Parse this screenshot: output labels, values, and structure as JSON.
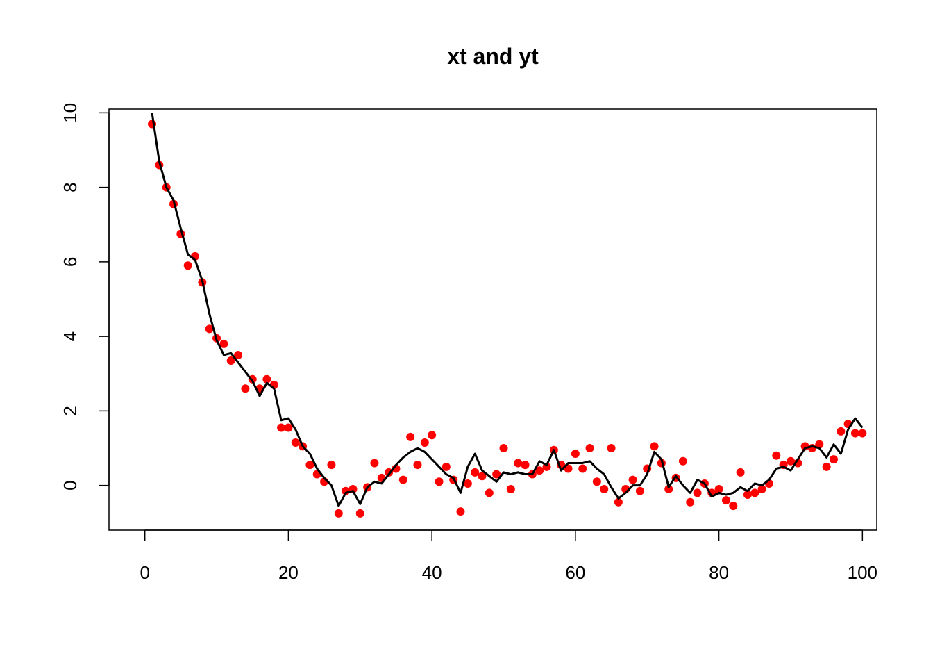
{
  "chart_data": {
    "type": "scatter",
    "title": "xt and yt",
    "xlabel": "",
    "ylabel": "",
    "xlim": [
      -5,
      102
    ],
    "ylim": [
      -1.2,
      10.1
    ],
    "x_ticks": [
      0,
      20,
      40,
      60,
      80,
      100
    ],
    "y_ticks": [
      0,
      2,
      4,
      6,
      8,
      10
    ],
    "grid": false,
    "colors": {
      "points": "#ff0000",
      "line": "#000000"
    },
    "series": [
      {
        "kind": "points",
        "values": [
          9.7,
          8.6,
          8.0,
          7.55,
          6.75,
          5.9,
          6.15,
          5.45,
          4.2,
          3.95,
          3.8,
          3.35,
          3.5,
          2.6,
          2.85,
          2.6,
          2.85,
          2.7,
          1.55,
          1.55,
          1.15,
          1.05,
          0.55,
          0.3,
          0.1,
          0.55,
          -0.75,
          -0.15,
          -0.1,
          -0.75,
          -0.05,
          0.6,
          0.2,
          0.35,
          0.45,
          0.15,
          1.3,
          0.55,
          1.15,
          1.35,
          0.1,
          0.5,
          0.15,
          -0.7,
          0.05,
          0.35,
          0.25,
          -0.2,
          0.3,
          1.0,
          -0.1,
          0.6,
          0.55,
          0.3,
          0.4,
          0.5,
          0.95,
          0.55,
          0.45,
          0.85,
          0.45,
          1.0,
          0.1,
          -0.1,
          1.0,
          -0.45,
          -0.1,
          0.15,
          -0.15,
          0.45,
          1.05,
          0.6,
          -0.1,
          0.2,
          0.65,
          -0.45,
          -0.2,
          0.05,
          -0.2,
          -0.1,
          -0.4,
          -0.55,
          0.35,
          -0.25,
          -0.2,
          -0.1,
          0.05,
          0.8,
          0.55,
          0.65,
          0.6,
          1.05,
          1.0,
          1.1,
          0.5,
          0.7,
          1.45,
          1.65,
          1.4,
          1.4
        ]
      },
      {
        "kind": "line",
        "values": [
          10.0,
          8.7,
          8.0,
          7.65,
          6.9,
          6.2,
          6.05,
          5.5,
          4.6,
          3.9,
          3.5,
          3.55,
          3.3,
          3.05,
          2.8,
          2.4,
          2.75,
          2.6,
          1.75,
          1.8,
          1.5,
          1.05,
          0.85,
          0.45,
          0.2,
          0.0,
          -0.55,
          -0.2,
          -0.15,
          -0.5,
          -0.05,
          0.1,
          0.05,
          0.3,
          0.55,
          0.75,
          0.9,
          1.0,
          0.9,
          0.7,
          0.5,
          0.3,
          0.2,
          -0.2,
          0.5,
          0.85,
          0.4,
          0.25,
          0.1,
          0.35,
          0.3,
          0.35,
          0.3,
          0.3,
          0.65,
          0.55,
          0.95,
          0.4,
          0.6,
          0.6,
          0.6,
          0.65,
          0.45,
          0.3,
          -0.05,
          -0.35,
          -0.2,
          0.0,
          0.0,
          0.3,
          0.9,
          0.7,
          -0.05,
          0.25,
          0.0,
          -0.2,
          0.15,
          0.05,
          -0.3,
          -0.2,
          -0.25,
          -0.2,
          -0.05,
          -0.15,
          0.05,
          0.0,
          0.15,
          0.45,
          0.5,
          0.4,
          0.7,
          1.0,
          1.05,
          1.0,
          0.75,
          1.1,
          0.85,
          1.5,
          1.8,
          1.55
        ]
      }
    ]
  }
}
